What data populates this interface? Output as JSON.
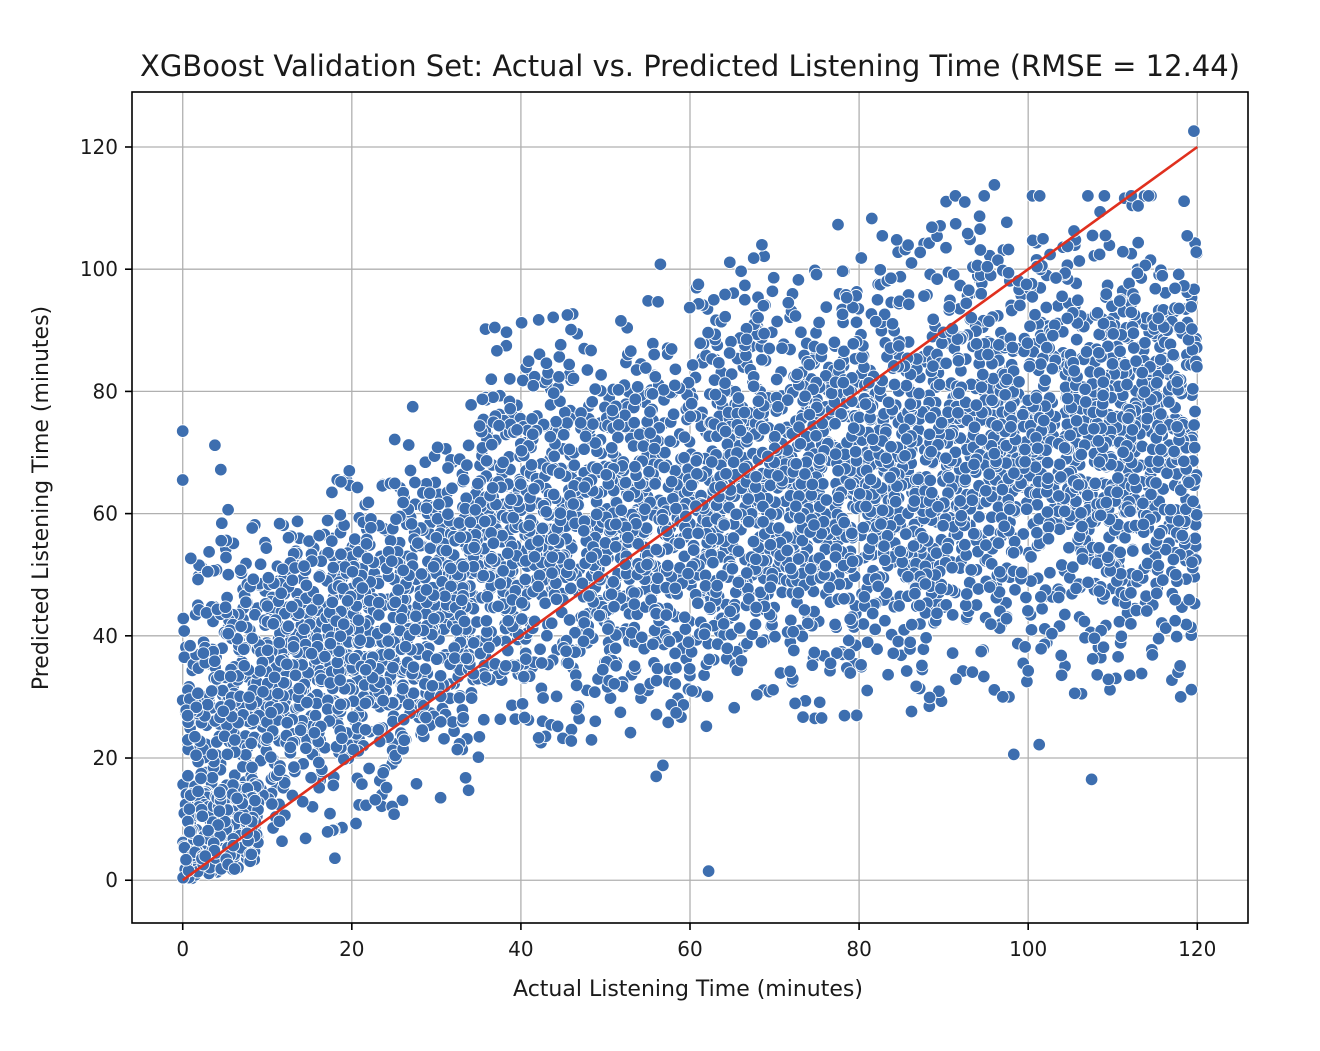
{
  "chart_data": {
    "type": "scatter",
    "title": "XGBoost Validation Set: Actual vs. Predicted Listening Time (RMSE = 12.44)",
    "xlabel": "Actual Listening Time (minutes)",
    "ylabel": "Predicted Listening Time (minutes)",
    "xlim": [
      -6,
      126
    ],
    "ylim": [
      -7,
      129
    ],
    "xticks": [
      0,
      20,
      40,
      60,
      80,
      100,
      120
    ],
    "yticks": [
      0,
      20,
      40,
      60,
      80,
      100,
      120
    ],
    "xtick_labels": [
      "0",
      "20",
      "40",
      "60",
      "80",
      "100",
      "120"
    ],
    "ytick_labels": [
      "0",
      "20",
      "40",
      "60",
      "80",
      "100",
      "120"
    ],
    "grid": true,
    "point_color": "#3d6eaf",
    "reference_line_color": "#e0301e",
    "reference_line": {
      "x": [
        0,
        120
      ],
      "y": [
        0,
        120
      ]
    },
    "point_cloud": {
      "description_bands": [
        {
          "x_from": 0,
          "x_to": 10,
          "y_low": 0,
          "y_high": 60
        },
        {
          "x_from": 10,
          "x_to": 35,
          "y_low": 5,
          "y_high": 62
        },
        {
          "x_from": 35,
          "x_to": 60,
          "y_low": 22,
          "y_high": 90
        },
        {
          "x_from": 60,
          "x_to": 90,
          "y_low": 25,
          "y_high": 100
        },
        {
          "x_from": 90,
          "x_to": 120,
          "y_low": 30,
          "y_high": 112
        }
      ]
    },
    "outliers": [
      {
        "x": 0,
        "y": 73.5
      },
      {
        "x": 0,
        "y": 65.5
      },
      {
        "x": 3.8,
        "y": 71.2
      },
      {
        "x": 4.5,
        "y": 67.2
      },
      {
        "x": 27.2,
        "y": 77.5
      },
      {
        "x": 36.5,
        "y": 82
      },
      {
        "x": 45.5,
        "y": 92.5
      },
      {
        "x": 56.5,
        "y": 100.8
      },
      {
        "x": 68.5,
        "y": 104
      },
      {
        "x": 77.5,
        "y": 107.3
      },
      {
        "x": 81.5,
        "y": 108.3
      },
      {
        "x": 92.5,
        "y": 111
      },
      {
        "x": 96,
        "y": 113.8
      },
      {
        "x": 119.6,
        "y": 122.6
      },
      {
        "x": 18,
        "y": 3.6
      },
      {
        "x": 25,
        "y": 10.8
      },
      {
        "x": 30.5,
        "y": 13.5
      },
      {
        "x": 56,
        "y": 17
      },
      {
        "x": 56.8,
        "y": 18.8
      },
      {
        "x": 62.2,
        "y": 1.5
      },
      {
        "x": 98.3,
        "y": 20.6
      },
      {
        "x": 107.5,
        "y": 16.5
      },
      {
        "x": 101.3,
        "y": 22.2
      },
      {
        "x": 105.5,
        "y": 30.6
      },
      {
        "x": 119.3,
        "y": 31.2
      },
      {
        "x": 119.7,
        "y": 70.8
      },
      {
        "x": 115.7,
        "y": 70.5
      },
      {
        "x": 119.5,
        "y": 62
      },
      {
        "x": 117.8,
        "y": 58.8
      },
      {
        "x": 115.4,
        "y": 51.5
      }
    ]
  }
}
